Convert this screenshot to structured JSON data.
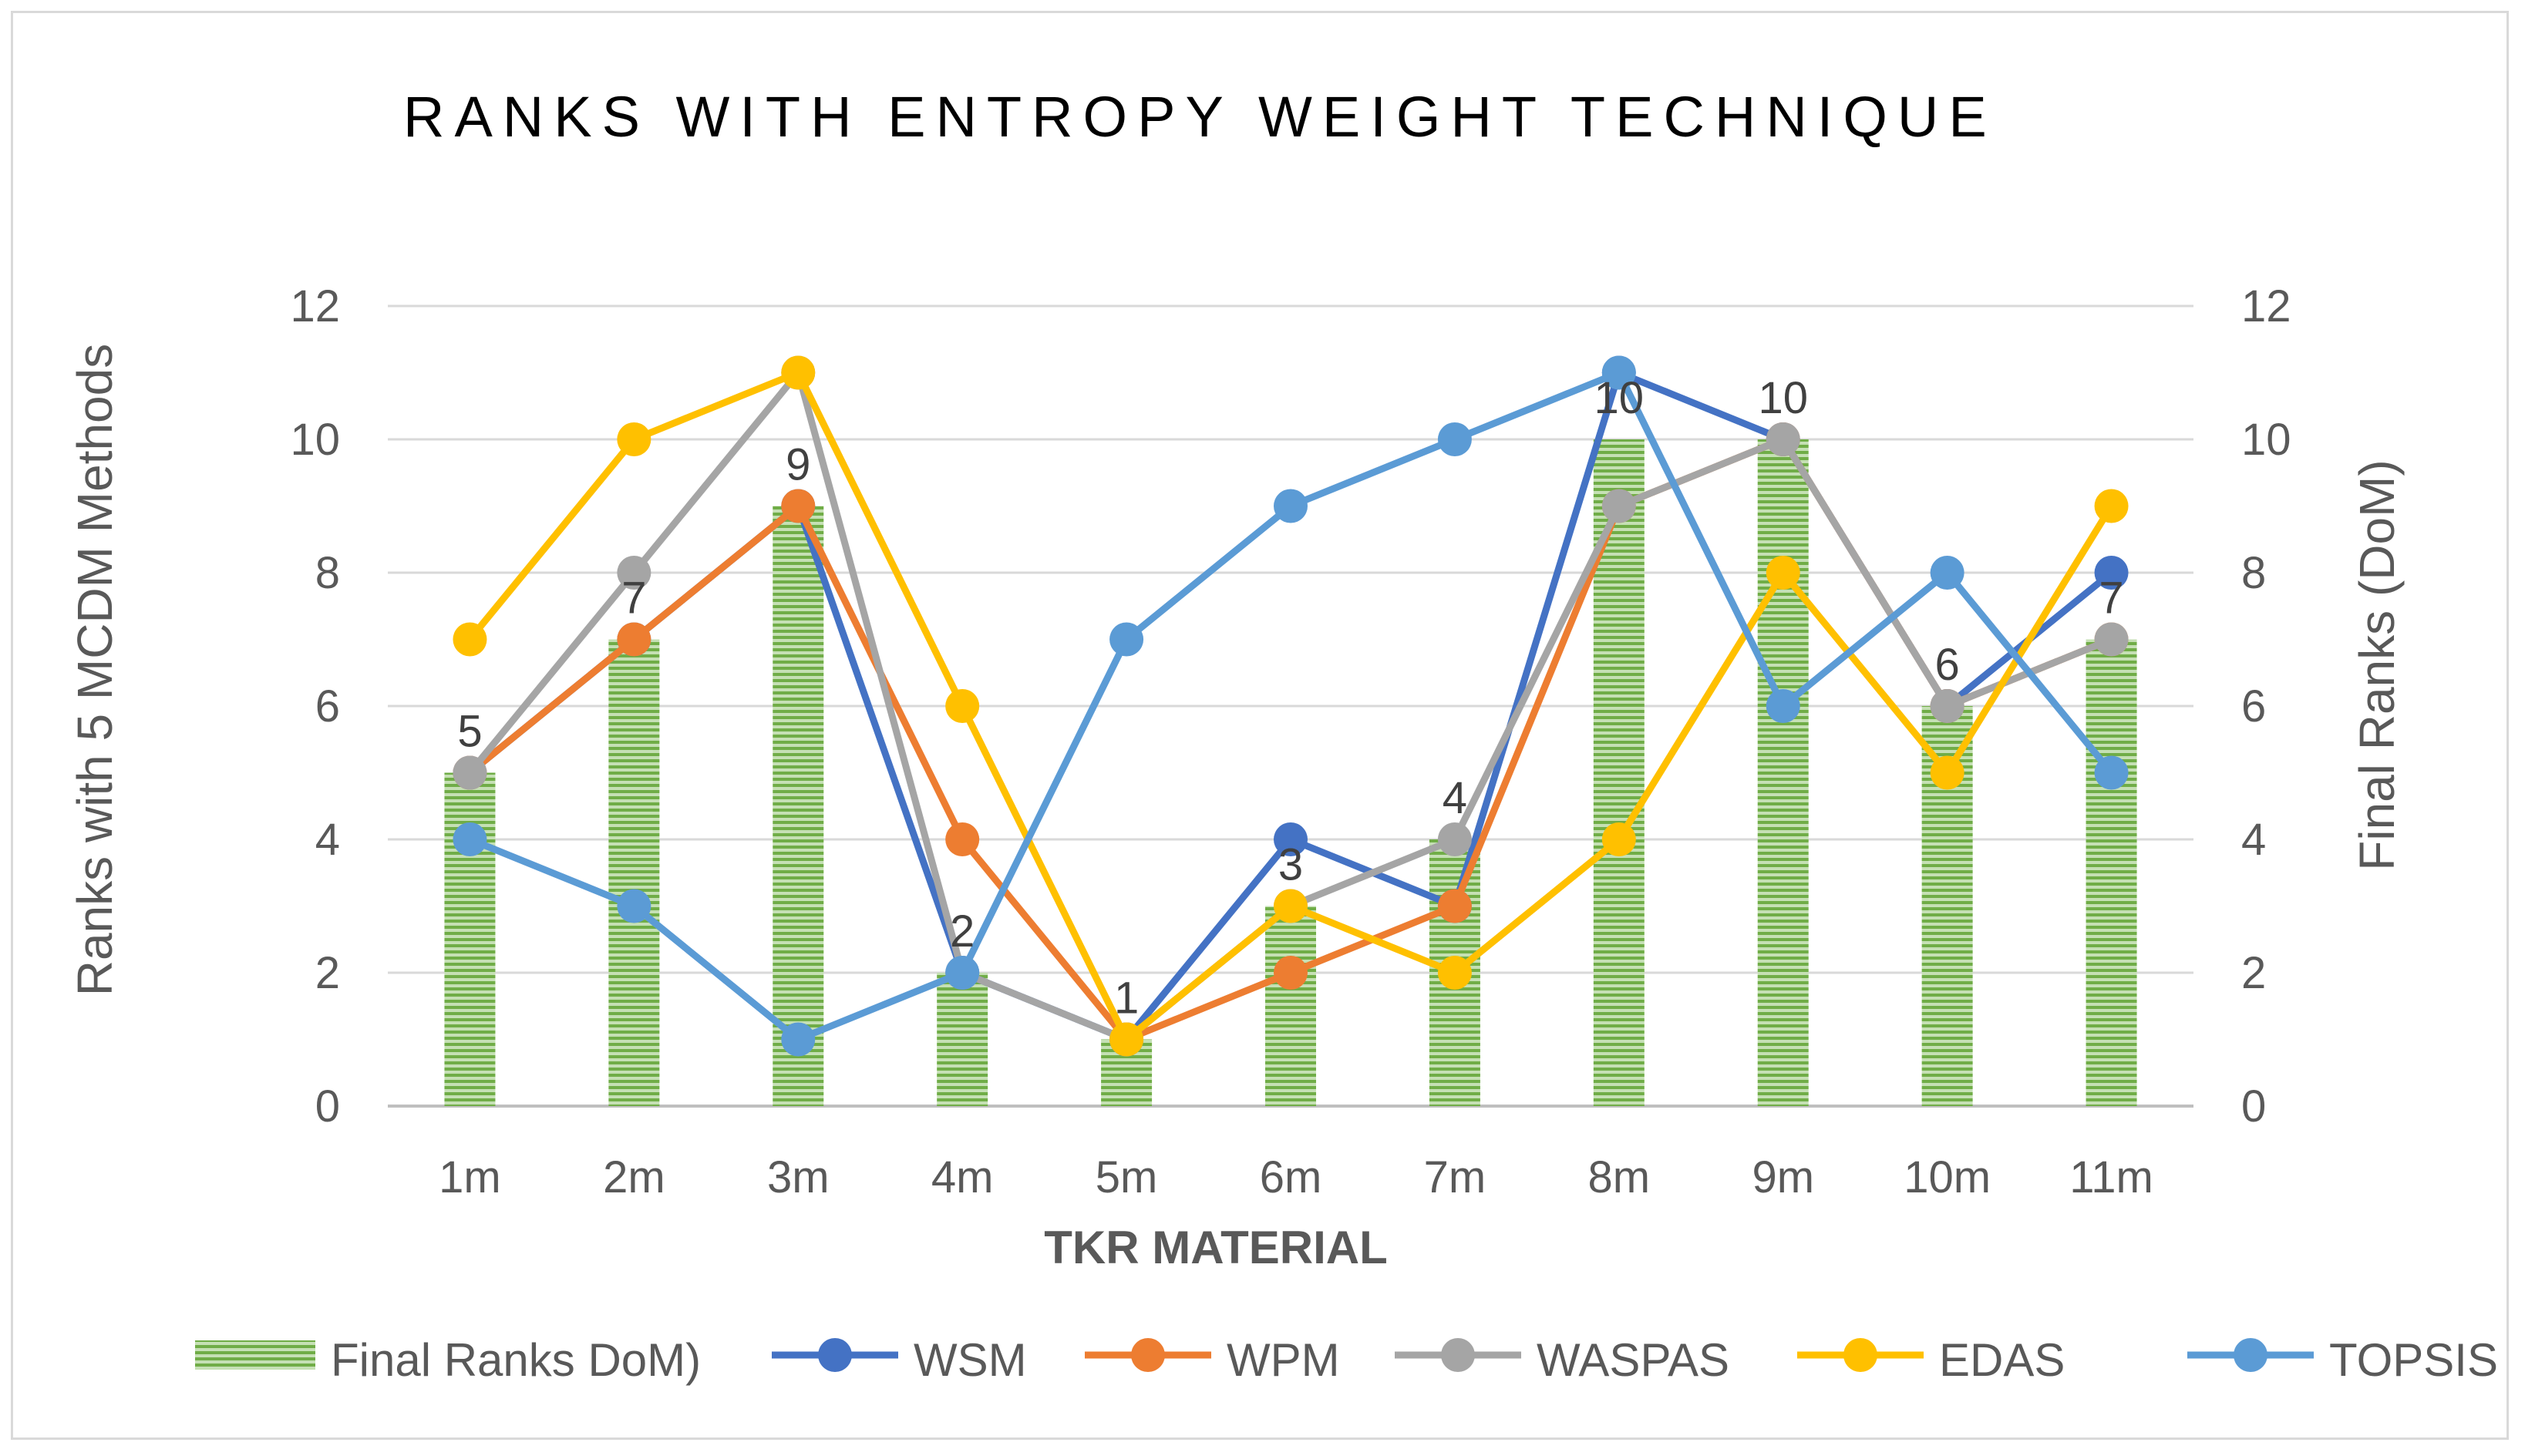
{
  "chart_data": {
    "type": "bar+line",
    "title": "RANKS WITH ENTROPY WEIGHT TECHNIQUE",
    "xlabel": "TKR MATERIAL",
    "ylabel_left": "Ranks with 5 MCDM Methods",
    "ylabel_right": "Final Ranks (DoM)",
    "ylim": [
      0,
      12
    ],
    "yticks": [
      "0",
      "2",
      "4",
      "6",
      "8",
      "10",
      "12"
    ],
    "grid": true,
    "legend_position": "bottom",
    "categories": [
      "1m",
      "2m",
      "3m",
      "4m",
      "5m",
      "6m",
      "7m",
      "8m",
      "9m",
      "10m",
      "11m"
    ],
    "bar_series": {
      "name": "Final Ranks DoM)",
      "values": [
        5,
        7,
        9,
        2,
        1,
        3,
        4,
        10,
        10,
        6,
        7
      ],
      "data_labels": [
        "5",
        "7",
        "9",
        "2",
        "1",
        "3",
        "4",
        "10",
        "10",
        "6",
        "7"
      ],
      "color": "#70ad47"
    },
    "series": [
      {
        "name": "WSM",
        "values": [
          5,
          7,
          9,
          2,
          1,
          4,
          3,
          11,
          10,
          6,
          8
        ],
        "color": "#4472c4"
      },
      {
        "name": "WPM",
        "values": [
          5,
          7,
          9,
          4,
          1,
          2,
          3,
          9,
          10,
          6,
          7
        ],
        "color": "#ed7d31"
      },
      {
        "name": "WASPAS",
        "values": [
          5,
          8,
          11,
          2,
          1,
          3,
          4,
          9,
          10,
          6,
          7
        ],
        "color": "#a5a5a5"
      },
      {
        "name": "EDAS",
        "values": [
          7,
          10,
          11,
          6,
          1,
          3,
          2,
          4,
          8,
          5,
          9
        ],
        "color": "#ffc000"
      },
      {
        "name": "TOPSIS",
        "values": [
          4,
          3,
          1,
          2,
          7,
          9,
          10,
          11,
          6,
          8,
          5
        ],
        "color": "#5b9bd5"
      }
    ]
  }
}
